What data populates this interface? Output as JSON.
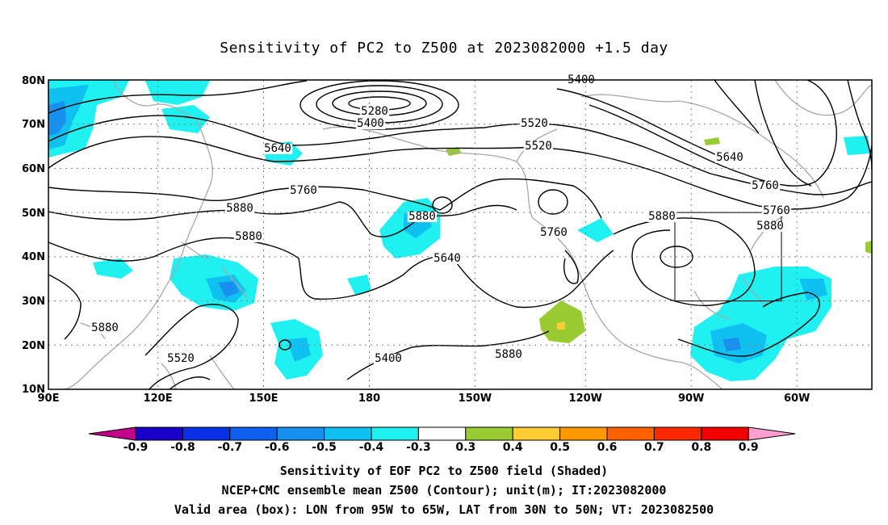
{
  "title": "Sensitivity of PC2 to Z500 at 2023082000 +1.5 day",
  "map": {
    "lat_labels": [
      "80N",
      "70N",
      "60N",
      "50N",
      "40N",
      "30N",
      "20N",
      "10N"
    ],
    "lon_labels": [
      "90E",
      "120E",
      "150E",
      "180",
      "150W",
      "120W",
      "90W",
      "60W"
    ],
    "lat_range": [
      10,
      80
    ],
    "lon_range": [
      "90E",
      "45W"
    ],
    "grid": "dotted",
    "contour_labels": [
      "5400",
      "5280",
      "5400",
      "5520",
      "5640",
      "5520",
      "5640",
      "5760",
      "5760",
      "5880",
      "5880",
      "5760",
      "5880",
      "5880",
      "5880",
      "5880",
      "5760",
      "5640",
      "5520",
      "5400",
      "5880"
    ],
    "valid_box": {
      "lon": [
        "95W",
        "65W"
      ],
      "lat": [
        "30N",
        "50N"
      ]
    }
  },
  "colorbar": {
    "tick_labels": [
      "-0.9",
      "-0.8",
      "-0.7",
      "-0.6",
      "-0.5",
      "-0.4",
      "-0.3",
      "0.3",
      "0.4",
      "0.5",
      "0.6",
      "0.7",
      "0.8",
      "0.9"
    ],
    "colors": [
      "#c2008a",
      "#1800c8",
      "#0a30e6",
      "#1060f0",
      "#1890f0",
      "#10c0f0",
      "#20f0f0",
      "#ffffff",
      "#99cc33",
      "#ffcc33",
      "#ff9900",
      "#ff6000",
      "#ff2800",
      "#f00000",
      "#ffa0d0"
    ]
  },
  "captions": {
    "line1": "Sensitivity of EOF PC2 to Z500 field (Shaded)",
    "line2": "NCEP+CMC ensemble mean Z500 (Contour); unit(m); IT:2023082000",
    "line3": "Valid area (box): LON from 95W to 65W, LAT from 30N to 50N; VT: 2023082500"
  }
}
